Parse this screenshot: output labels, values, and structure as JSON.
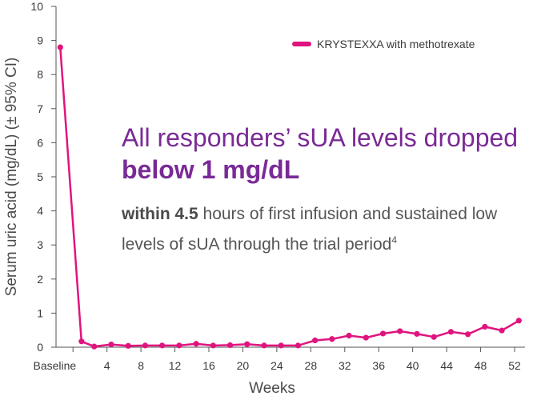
{
  "chart_data": {
    "type": "line",
    "ylabel": "Serum uric acid (mg/dL) (± 95% CI)",
    "xlabel": "Weeks",
    "ylim": [
      0,
      10
    ],
    "yticks": [
      0,
      1,
      2,
      3,
      4,
      5,
      6,
      7,
      8,
      9,
      10
    ],
    "xlim": [
      -2,
      52
    ],
    "xticks": [
      {
        "value": 0,
        "label": "Baseline"
      },
      {
        "value": 4,
        "label": "4"
      },
      {
        "value": 8,
        "label": "8"
      },
      {
        "value": 12,
        "label": "12"
      },
      {
        "value": 16,
        "label": "16"
      },
      {
        "value": 20,
        "label": "20"
      },
      {
        "value": 24,
        "label": "24"
      },
      {
        "value": 28,
        "label": "28"
      },
      {
        "value": 32,
        "label": "32"
      },
      {
        "value": 36,
        "label": "36"
      },
      {
        "value": 40,
        "label": "40"
      },
      {
        "value": 44,
        "label": "44"
      },
      {
        "value": 48,
        "label": "48"
      },
      {
        "value": 52,
        "label": "52"
      }
    ],
    "legend": "top-right",
    "grid": false,
    "series": [
      {
        "name": "KRYSTEXXA with methotrexate",
        "color": "#e0147e",
        "points": [
          {
            "x": -1.5,
            "y": 8.8
          },
          {
            "x": 1,
            "y": 0.17
          },
          {
            "x": 2.5,
            "y": 0.02
          },
          {
            "x": 4.5,
            "y": 0.08
          },
          {
            "x": 6.5,
            "y": 0.04
          },
          {
            "x": 8.5,
            "y": 0.05
          },
          {
            "x": 10.5,
            "y": 0.05
          },
          {
            "x": 12.5,
            "y": 0.05
          },
          {
            "x": 14.5,
            "y": 0.1
          },
          {
            "x": 16.5,
            "y": 0.05
          },
          {
            "x": 18.5,
            "y": 0.06
          },
          {
            "x": 20.5,
            "y": 0.09
          },
          {
            "x": 22.5,
            "y": 0.05
          },
          {
            "x": 24.5,
            "y": 0.05
          },
          {
            "x": 26.5,
            "y": 0.05
          },
          {
            "x": 28.5,
            "y": 0.2
          },
          {
            "x": 30.5,
            "y": 0.24
          },
          {
            "x": 32.5,
            "y": 0.34
          },
          {
            "x": 34.5,
            "y": 0.28
          },
          {
            "x": 36.5,
            "y": 0.4
          },
          {
            "x": 38.5,
            "y": 0.47
          },
          {
            "x": 40.5,
            "y": 0.39
          },
          {
            "x": 42.5,
            "y": 0.3
          },
          {
            "x": 44.5,
            "y": 0.45
          },
          {
            "x": 46.5,
            "y": 0.38
          },
          {
            "x": 48.5,
            "y": 0.6
          },
          {
            "x": 50.5,
            "y": 0.49
          },
          {
            "x": 52.5,
            "y": 0.78
          }
        ]
      }
    ],
    "annotation": {
      "headline_normal": "All responders’ sUA levels dropped ",
      "headline_bold": "below 1 mg/dL",
      "body_bold": "within 4.5",
      "body_text": " hours of first infusion and sustained low levels of sUA through the trial period",
      "body_sup": "4"
    }
  }
}
